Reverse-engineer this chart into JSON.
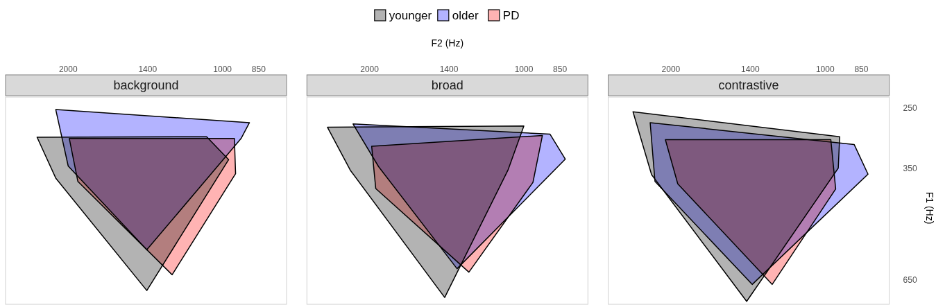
{
  "chart_data": [
    {
      "type": "area",
      "title": "background",
      "tick_labels": "x",
      "marker": "none",
      "xlim": [
        2650,
        750
      ],
      "ylim": [
        745,
        235
      ],
      "xticks": [
        2000,
        1400,
        1000,
        850
      ],
      "log": "xy",
      "series": [
        {
          "color": "#b3b3b3",
          "x": [
            2300,
            1074,
            973,
            1405,
            2115
          ],
          "values": [
            294,
            293,
            333,
            690,
            369
          ]
        },
        {
          "color": "#b3b3ff",
          "x": [
            2115,
            886,
            920,
            1405,
            2000
          ],
          "values": [
            252,
            271,
            296,
            550,
            345
          ]
        },
        {
          "color": "#ffb3b3",
          "x": [
            1990,
            948,
            943,
            1254,
            1915
          ],
          "values": [
            296,
            296,
            360,
            632,
            376
          ]
        }
      ]
    },
    {
      "type": "area",
      "title": "broad",
      "xlabel": "F2 (Hz)",
      "legend": "top",
      "tick_labels": "x",
      "marker": "none",
      "xlim": [
        2650,
        750
      ],
      "ylim": [
        745,
        235
      ],
      "xticks": [
        2000,
        1400,
        1000,
        850
      ],
      "log": "xy",
      "series": [
        {
          "name": "younger",
          "color": "#b3b3b3",
          "x": [
            2416,
            1000,
            1074,
            1427,
            2181
          ],
          "values": [
            278,
            276,
            353,
            717,
            353
          ]
        },
        {
          "name": "older",
          "color": "#b3b3ff",
          "x": [
            2154,
            889,
            830,
            1350,
            1921
          ],
          "values": [
            273,
            289,
            332,
            611,
            346
          ]
        },
        {
          "name": "PD",
          "color": "#ffb3b3",
          "x": [
            1981,
            920,
            960,
            1280,
            1945
          ],
          "values": [
            309,
            291,
            378,
            623,
            391
          ]
        }
      ]
    },
    {
      "type": "area",
      "title": "contrastive",
      "ylabel": "F1 (Hz)",
      "marker": "none",
      "xlim": [
        2650,
        750
      ],
      "ylim": [
        745,
        235
      ],
      "xticks": [
        2000,
        1400,
        1000,
        850
      ],
      "yticks": [
        250,
        350,
        650
      ],
      "log": "xy",
      "series": [
        {
          "color": "#b3b3b3",
          "x": [
            2371,
            937,
            943,
            1423,
            2181
          ],
          "values": [
            255,
            293,
            349,
            733,
            362
          ]
        },
        {
          "color": "#b3b3ff",
          "x": [
            2195,
            878,
            825,
            1388,
            2148
          ],
          "values": [
            271,
            306,
            361,
            667,
            376
          ]
        },
        {
          "color": "#ffb3b3",
          "x": [
            2050,
            975,
            954,
            1269,
            1939
          ],
          "values": [
            298,
            298,
            392,
            667,
            381
          ]
        }
      ]
    }
  ]
}
